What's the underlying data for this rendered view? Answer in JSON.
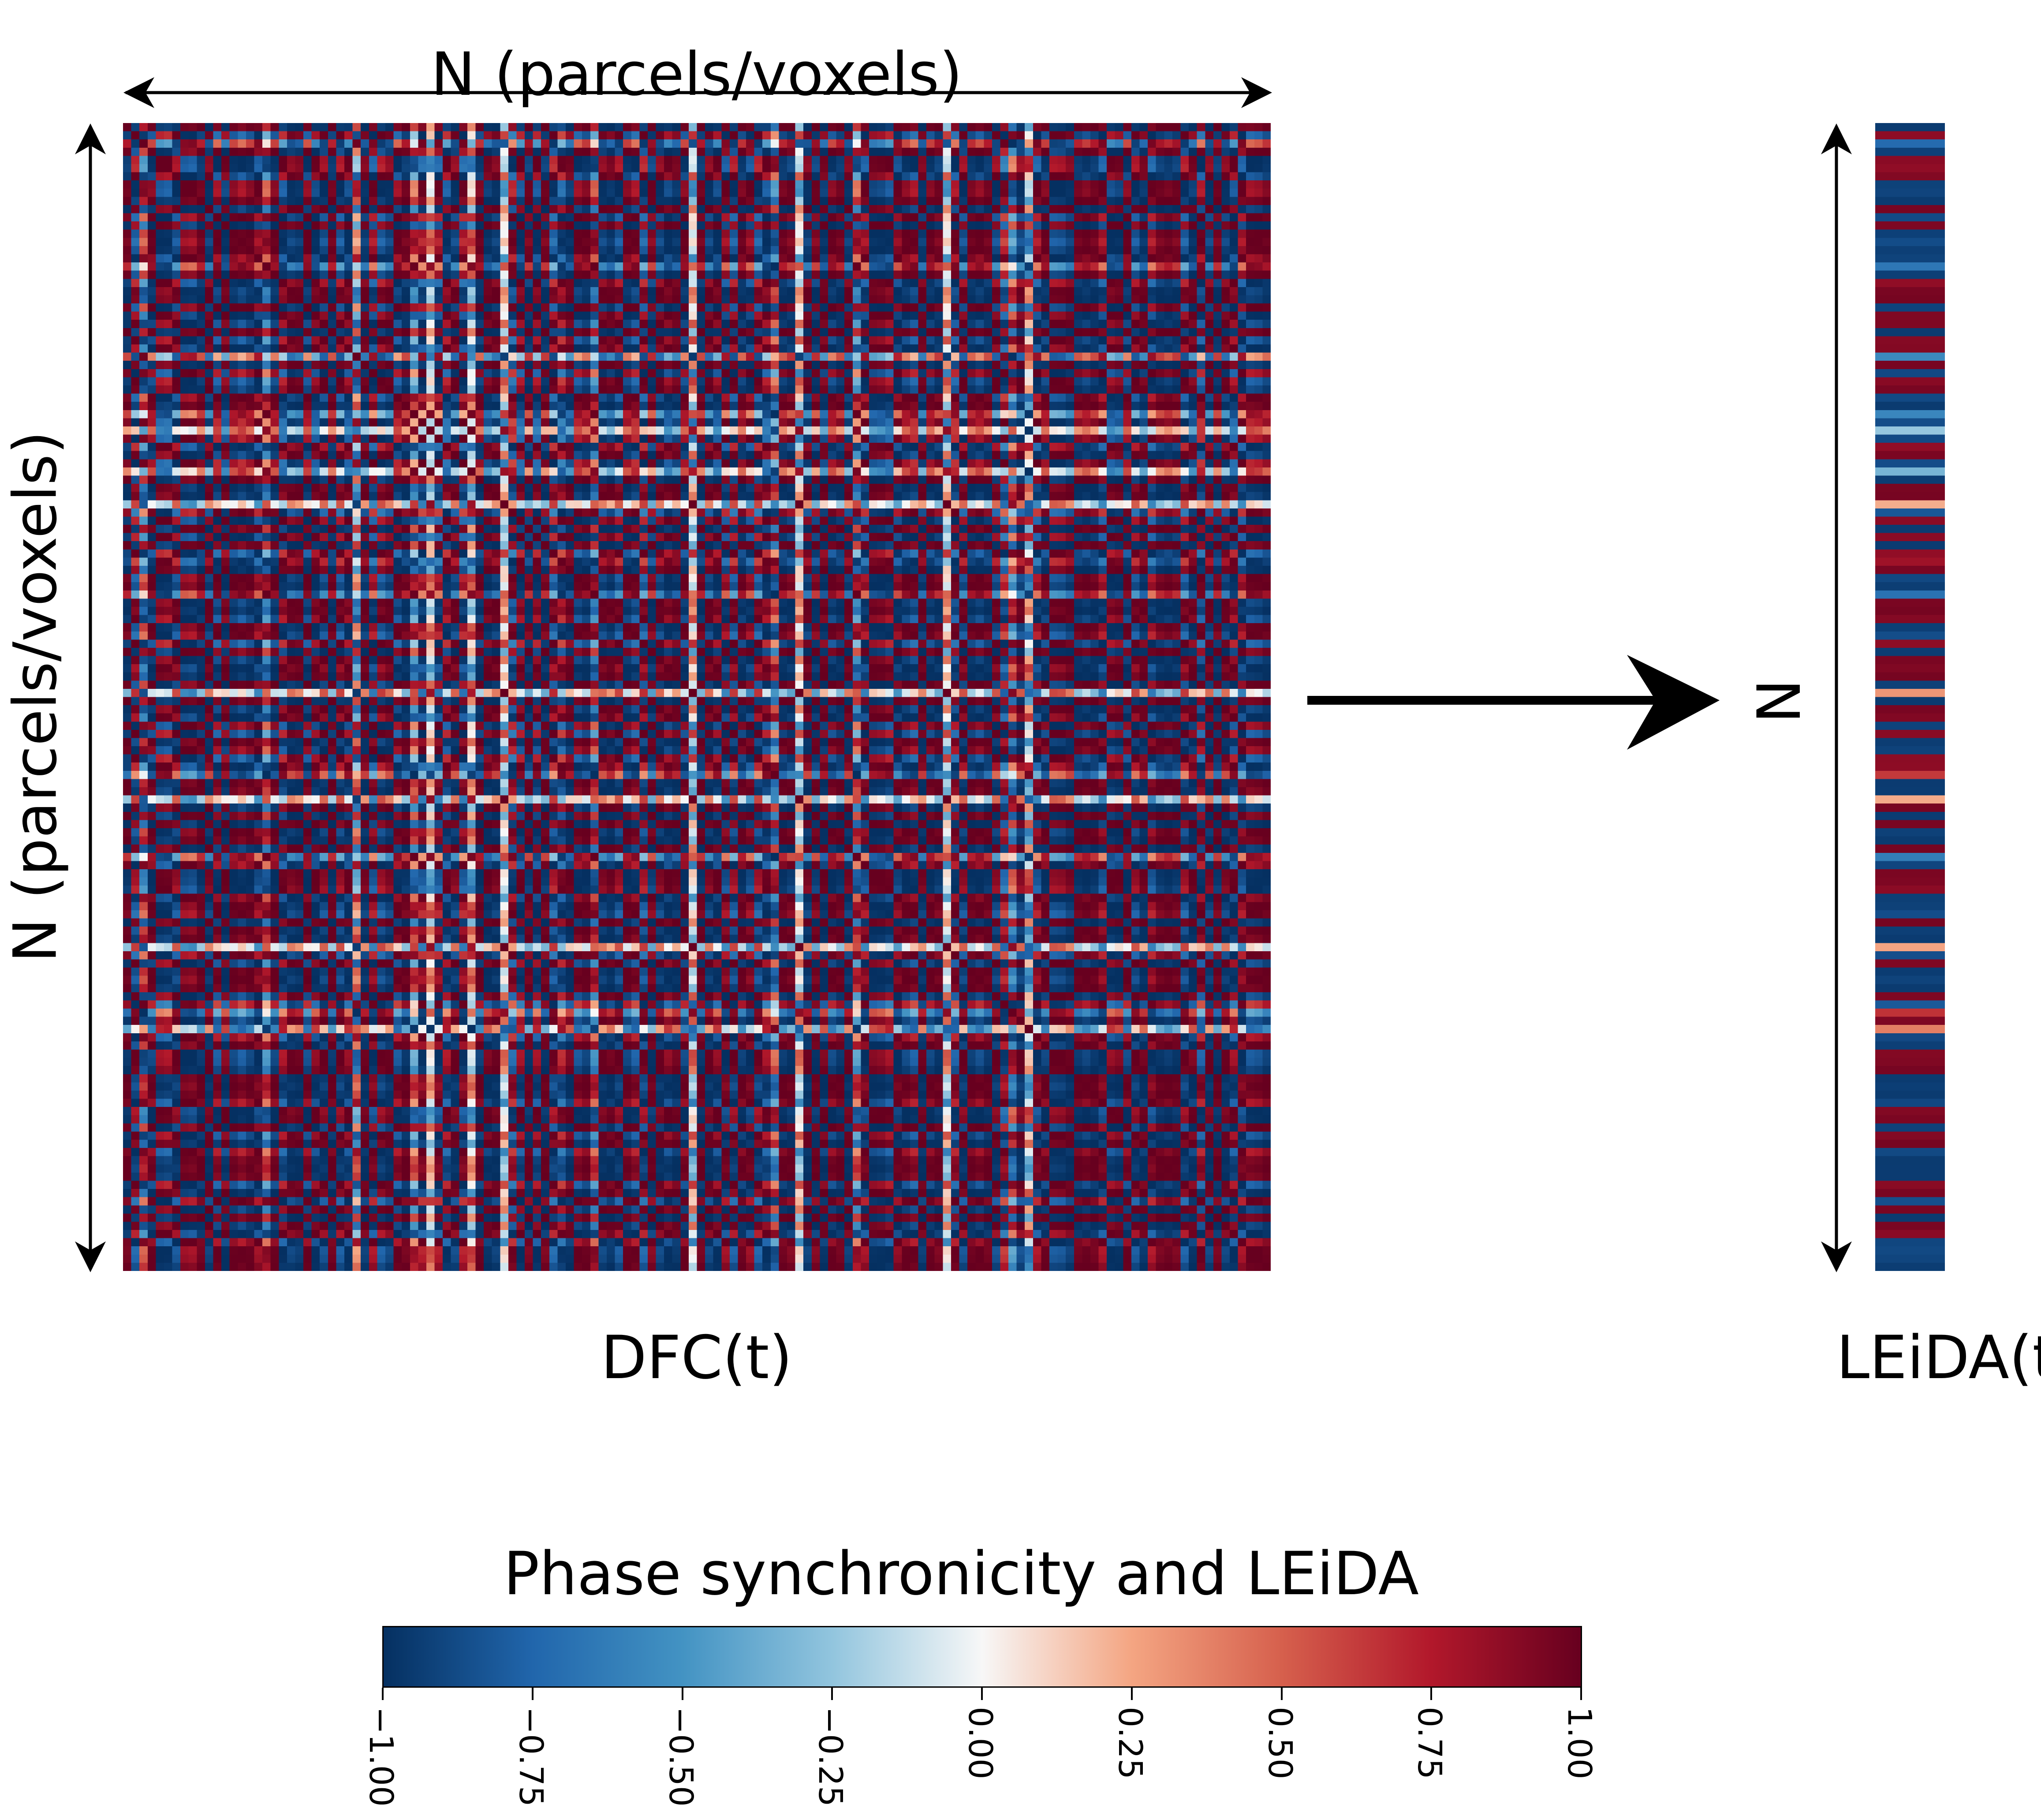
{
  "labels": {
    "top": "N (parcels/voxels)",
    "left": "N (parcels/voxels)",
    "dfc": "DFC(t)",
    "leida": "LEiDA(t)",
    "n": "N"
  },
  "colorbar": {
    "title": "Phase synchronicity and LEiDA",
    "min": -1.0,
    "max": 1.0,
    "ticks": [
      "−1.00",
      "−0.75",
      "−0.50",
      "−0.25",
      "0.00",
      "0.25",
      "0.50",
      "0.75",
      "1.00"
    ],
    "colormap": "RdBu_r",
    "colors": [
      "#053061",
      "#2166ac",
      "#4393c3",
      "#92c5de",
      "#f7f7f7",
      "#f4a582",
      "#d6604d",
      "#b2182b",
      "#67001f"
    ]
  },
  "heatmap": {
    "size": 140,
    "seed": 17
  }
}
